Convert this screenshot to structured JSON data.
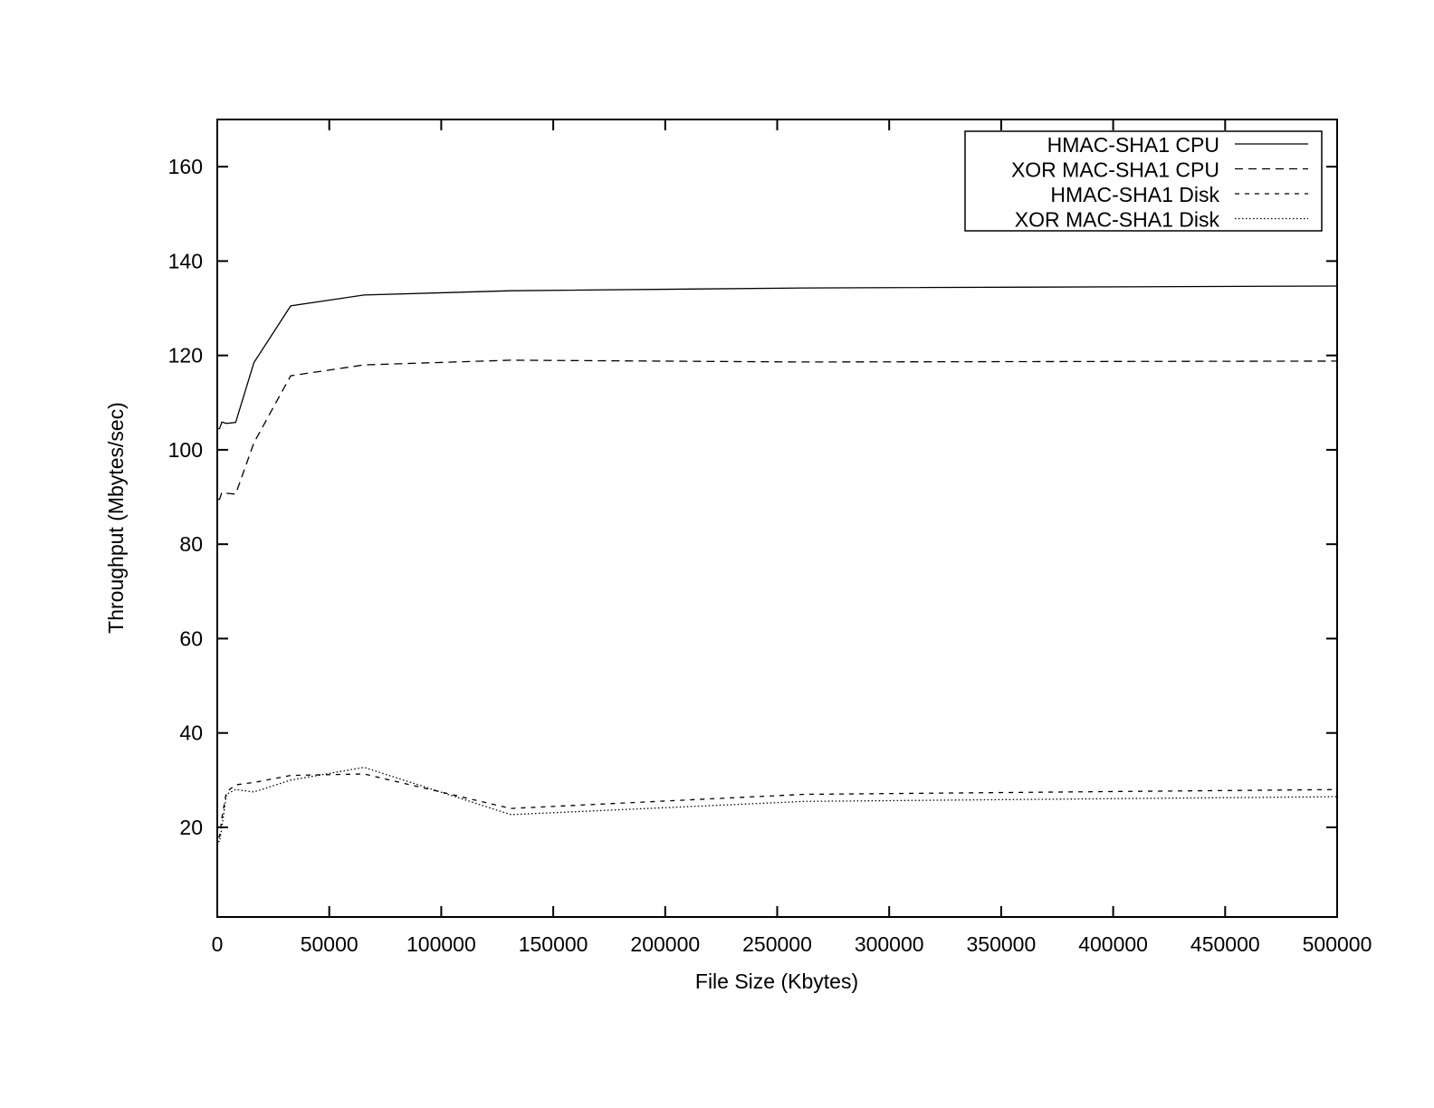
{
  "chart_data": {
    "type": "line",
    "title": "",
    "xlabel": "File Size (Kbytes)",
    "ylabel": "Throughput (Mbytes/sec)",
    "xlim": [
      0,
      500000
    ],
    "ylim": [
      1,
      170
    ],
    "xticks": [
      0,
      50000,
      100000,
      150000,
      200000,
      250000,
      300000,
      350000,
      400000,
      450000,
      500000
    ],
    "yticks": [
      20,
      40,
      60,
      80,
      100,
      120,
      140,
      160
    ],
    "grid": false,
    "legend_position": "top-right",
    "x": [
      1024,
      2048,
      4096,
      8192,
      16384,
      32768,
      65536,
      131072,
      262144,
      500000
    ],
    "series": [
      {
        "name": "HMAC-SHA1 CPU",
        "style": "solid",
        "values": [
          104.5,
          105.9,
          105.6,
          105.8,
          118.5,
          130.5,
          132.8,
          133.7,
          134.3,
          134.7
        ]
      },
      {
        "name": "XOR MAC-SHA1 CPU",
        "style": "dashed",
        "values": [
          89.5,
          91.0,
          90.8,
          90.6,
          101.5,
          115.7,
          118.0,
          119.0,
          118.6,
          118.8
        ]
      },
      {
        "name": "HMAC-SHA1 Disk",
        "style": "short-dashed",
        "values": [
          18.0,
          22.0,
          27.5,
          29.0,
          29.5,
          31.0,
          31.3,
          24.0,
          27.0,
          28.0
        ]
      },
      {
        "name": "XOR MAC-SHA1 Disk",
        "style": "dotted",
        "values": [
          17.0,
          20.0,
          27.0,
          28.0,
          27.5,
          30.0,
          32.7,
          22.7,
          25.5,
          26.5
        ]
      }
    ]
  }
}
